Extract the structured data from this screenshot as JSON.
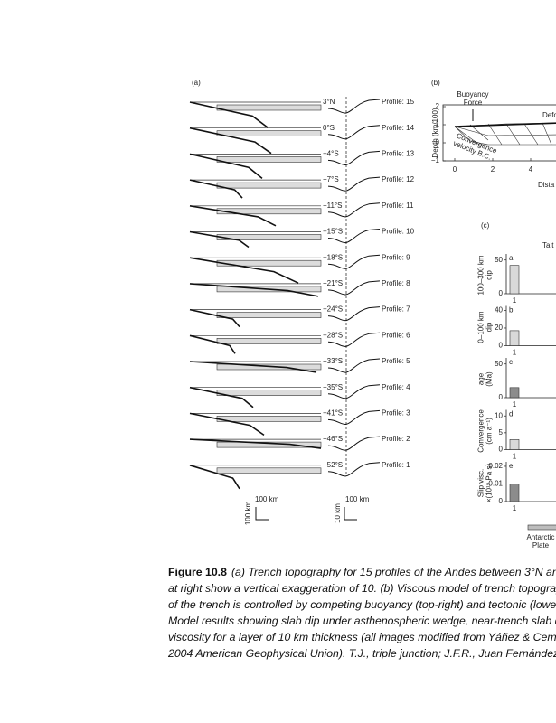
{
  "panel_a": {
    "label": "(a)",
    "profiles": [
      {
        "latitude": "3°N",
        "name": "Profile: 15"
      },
      {
        "latitude": "0°S",
        "name": "Profile: 14"
      },
      {
        "latitude": "−4°S",
        "name": "Profile: 13"
      },
      {
        "latitude": "−7°S",
        "name": "Profile: 12"
      },
      {
        "latitude": "−11°S",
        "name": "Profile: 11"
      },
      {
        "latitude": "−15°S",
        "name": "Profile: 10"
      },
      {
        "latitude": "−18°S",
        "name": "Profile: 9"
      },
      {
        "latitude": "−21°S",
        "name": "Profile: 8"
      },
      {
        "latitude": "−24°S",
        "name": "Profile: 7"
      },
      {
        "latitude": "−28°S",
        "name": "Profile: 6"
      },
      {
        "latitude": "−33°S",
        "name": "Profile: 5"
      },
      {
        "latitude": "−35°S",
        "name": "Profile: 4"
      },
      {
        "latitude": "−41°S",
        "name": "Profile: 3"
      },
      {
        "latitude": "−46°S",
        "name": "Profile: 2"
      },
      {
        "latitude": "−52°S",
        "name": "Profile: 1"
      }
    ],
    "scale_left": {
      "horizontal": "100 km",
      "vertical": "100 km"
    },
    "scale_right": {
      "horizontal": "100 km",
      "vertical": "10 km"
    }
  },
  "panel_b": {
    "label": "(b)",
    "buoyancy": [
      "Buoyancy",
      "Force"
    ],
    "deformation": "Defo",
    "convergence": [
      "Convergence",
      "velocity B.C."
    ],
    "y_axis_label": "Depth (km/100)",
    "yticks": [
      "2",
      "1",
      "0",
      "−1"
    ],
    "xticks": [
      "0",
      "2",
      "4"
    ],
    "x_axis_label": "Dista"
  },
  "panel_c": {
    "label": "(c)",
    "column": "Tait",
    "subplots": [
      {
        "letter": "a",
        "ylabel": [
          "100–300 km",
          "dip"
        ],
        "ylim": [
          0,
          55
        ],
        "yticks": [
          0,
          50
        ],
        "category": "1",
        "value": 42,
        "color": "#d9d9d9"
      },
      {
        "letter": "b",
        "ylabel": [
          "0–100 km",
          "dip"
        ],
        "ylim": [
          0,
          42
        ],
        "yticks": [
          0,
          20,
          40
        ],
        "category": "1",
        "value": 17,
        "color": "#d9d9d9"
      },
      {
        "letter": "c",
        "ylabel": [
          "age",
          "(Ma)"
        ],
        "ylim": [
          0,
          55
        ],
        "yticks": [
          0,
          50
        ],
        "category": "1",
        "value": 15,
        "color": "#8c8c8c"
      },
      {
        "letter": "d",
        "ylabel": [
          "Convergence",
          "(cm a⁻¹)"
        ],
        "ylim": [
          0,
          11
        ],
        "yticks": [
          0,
          5,
          10
        ],
        "category": "1",
        "value": 3,
        "color": "#d9d9d9"
      },
      {
        "letter": "e",
        "ylabel": [
          "Slip visc.",
          "×(10¹⁹ Pa s)"
        ],
        "ylim": [
          0,
          0.021
        ],
        "yticks": [
          0,
          0.01,
          0.02
        ],
        "category": "1",
        "value": 0.01,
        "color": "#8c8c8c"
      }
    ],
    "legend": [
      "Antarctic",
      "Plate"
    ]
  },
  "caption": {
    "label": "Figure 10.8",
    "lines": [
      "(a) Trench topography for 15 profiles of the Andes between 3°N an",
      "at right show a vertical exaggeration of 10. (b) Viscous model of trench topograp",
      "of the trench is controlled by competing buoyancy (top-right) and tectonic (lowe",
      "Model results showing slab dip under asthenospheric wedge, near-trench slab d",
      "viscosity for a layer of 10 km thickness (all images modified from Yáñez & Cemb",
      "2004 American Geophysical Union). T.J., triple junction; J.F.R., Juan Fernández Ri"
    ]
  }
}
